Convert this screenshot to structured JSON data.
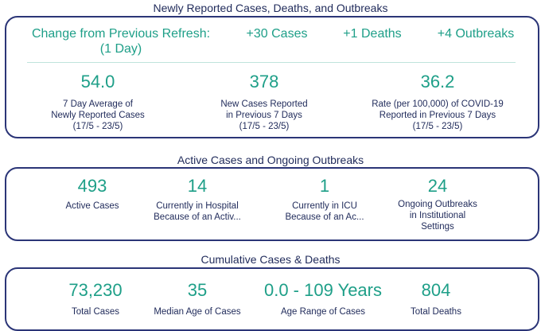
{
  "sections": {
    "newly": {
      "title": "Newly Reported Cases, Deaths, and Outbreaks",
      "change_label": "Change from Previous Refresh:",
      "change_period": "(1 Day)",
      "cases_change": "+30 Cases",
      "deaths_change": "+1 Deaths",
      "outbreaks_change": "+4 Outbreaks",
      "metrics": [
        {
          "value": "54.0",
          "label_lines": [
            "7 Day Average of",
            "Newly Reported Cases",
            "(17/5 - 23/5)"
          ]
        },
        {
          "value": "378",
          "label_lines": [
            "New Cases Reported",
            "in Previous 7 Days",
            "(17/5 - 23/5)"
          ]
        },
        {
          "value": "36.2",
          "label_lines": [
            "Rate (per 100,000) of COVID-19",
            "Reported in Previous 7 Days",
            "(17/5 - 23/5)"
          ]
        }
      ]
    },
    "active": {
      "title": "Active Cases and Ongoing Outbreaks",
      "metrics": [
        {
          "value": "493",
          "label_lines": [
            "Active Cases"
          ]
        },
        {
          "value": "14",
          "label_lines": [
            "Currently in Hospital",
            "Because of an Activ..."
          ]
        },
        {
          "value": "1",
          "label_lines": [
            "Currently in ICU",
            "Because of an Ac..."
          ]
        },
        {
          "value": "24",
          "label_lines": [
            "Ongoing Outbreaks",
            "in Institutional",
            "Settings"
          ]
        }
      ]
    },
    "cumulative": {
      "title": "Cumulative Cases & Deaths",
      "metrics": [
        {
          "value": "73,230",
          "label_lines": [
            "Total Cases"
          ]
        },
        {
          "value": "35",
          "label_lines": [
            "Median Age of Cases"
          ]
        },
        {
          "value": "0.0 - 109 Years",
          "label_lines": [
            "Age Range of Cases"
          ]
        },
        {
          "value": "804",
          "label_lines": [
            "Total Deaths"
          ]
        }
      ]
    }
  },
  "colors": {
    "accent": "#1e9f88",
    "border": "#2b3577",
    "text": "#1f2a5a"
  }
}
